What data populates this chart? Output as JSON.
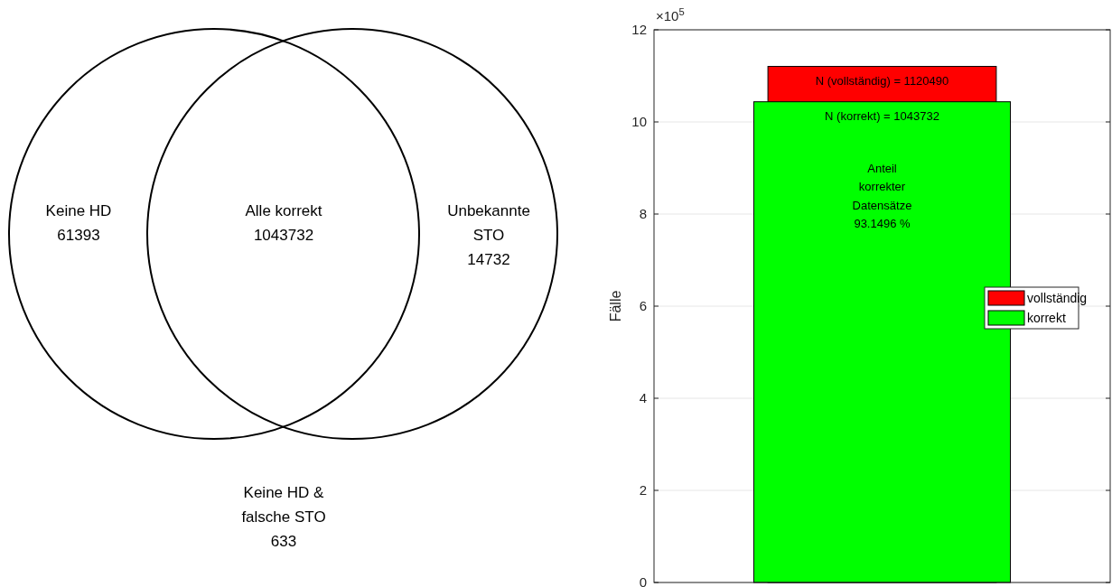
{
  "chart_data": [
    {
      "type": "other",
      "categories": [
        "Keine HD",
        "Alle korrekt",
        "Unbekannte STO",
        "Keine HD & falsche STO"
      ],
      "values": [
        61393,
        1043732,
        14732,
        633
      ],
      "data_labels": true
    },
    {
      "type": "bar",
      "categories": [
        null
      ],
      "ylabel": "Fälle",
      "ylim": [
        0,
        12
      ],
      "yticks": [
        0,
        2,
        4,
        6,
        8,
        10,
        12
      ],
      "grid": "y",
      "legend": "right",
      "series": [
        {
          "name": "vollständig",
          "color": "#ff0000",
          "values": [
            11.2049
          ]
        },
        {
          "name": "korrekt",
          "color": "#00ff00",
          "values": [
            10.43732
          ]
        }
      ],
      "annotations": [
        "×10$^{5}$",
        "Anteil korrekter Datensätze 93.1496 %",
        "N (vollständig) = 1120490",
        "N (korrekt) = 1043732"
      ]
    }
  ]
}
